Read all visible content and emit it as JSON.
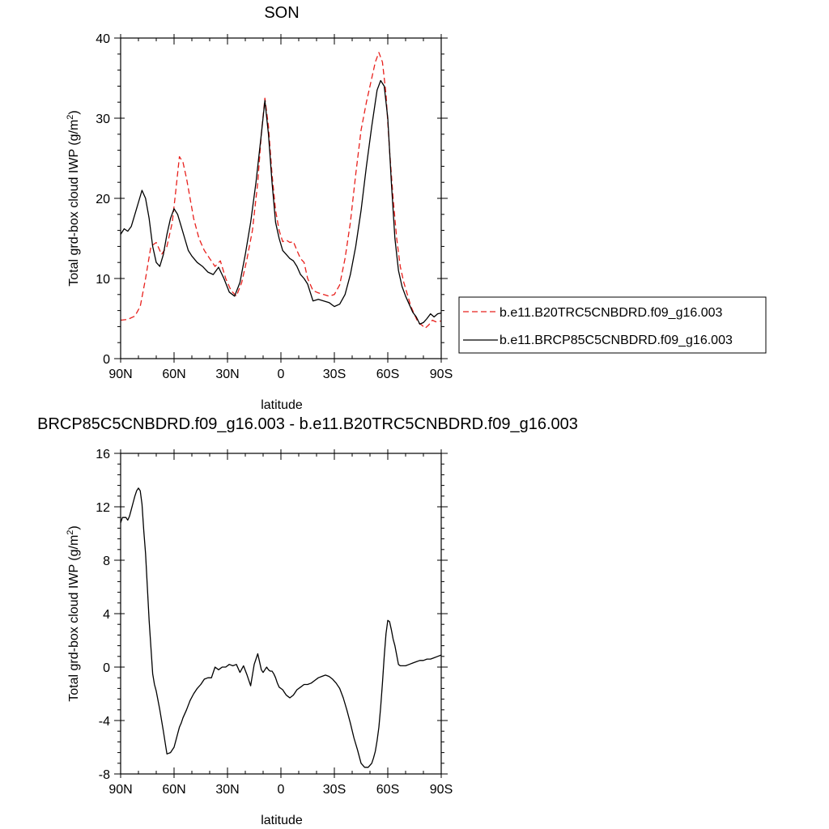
{
  "chart_data": [
    {
      "type": "line",
      "title": "SON",
      "xlabel": "latitude",
      "ylabel": "Total grd-box cloud IWP (g/m",
      "ylabel_sup": "2",
      "ylabel_close": ")",
      "xlim": [
        90,
        -90
      ],
      "ylim": [
        0,
        40
      ],
      "xticks": [
        90,
        60,
        30,
        0,
        -30,
        -60,
        -90
      ],
      "xtick_labels": [
        "90N",
        "60N",
        "30N",
        "0",
        "30S",
        "60S",
        "90S"
      ],
      "yticks": [
        0,
        10,
        20,
        30,
        40
      ],
      "ytick_labels": [
        "0",
        "10",
        "20",
        "30",
        "40"
      ],
      "legend_placement": "right",
      "series": [
        {
          "name": "b.e11.B20TRC5CNBDRD.f09_g16.003",
          "color": "#e8201c",
          "dash": "dashed",
          "x": [
            90,
            86,
            82,
            79,
            76,
            73,
            70,
            67,
            64,
            61,
            59,
            57,
            55,
            53,
            51,
            49,
            46,
            43,
            40,
            37,
            34,
            31,
            28,
            25,
            22,
            19,
            16,
            13,
            11,
            9,
            7,
            5,
            3,
            1,
            -1,
            -3,
            -5,
            -7,
            -9,
            -11,
            -13,
            -15,
            -18,
            -21,
            -24,
            -27,
            -30,
            -33,
            -36,
            -39,
            -42,
            -45,
            -48,
            -51,
            -53,
            -55,
            -57,
            -59,
            -61,
            -63,
            -65,
            -67,
            -69,
            -71,
            -73,
            -75,
            -77,
            -79,
            -81,
            -83,
            -85,
            -87,
            -90
          ],
          "y": [
            4.8,
            4.9,
            5.3,
            6.5,
            10,
            14,
            14.5,
            13,
            14,
            17,
            21,
            25.2,
            24.5,
            22.5,
            20,
            17.5,
            15,
            13.5,
            12.5,
            11.5,
            12.2,
            10,
            8.5,
            7.8,
            9.5,
            12.5,
            16,
            22,
            28,
            32.5,
            29,
            23,
            18.5,
            16,
            14.6,
            14.8,
            14.5,
            14.6,
            13.5,
            12.5,
            12,
            10,
            8.5,
            8.2,
            8,
            7.8,
            8,
            9.2,
            12.5,
            17,
            23,
            28.5,
            32,
            35,
            37,
            38.2,
            37,
            33,
            26,
            20,
            15,
            11.5,
            9.5,
            8,
            6.5,
            5.5,
            4.5,
            4.2,
            3.8,
            4.2,
            4.8,
            4.6,
            4.7
          ]
        },
        {
          "name": "b.e11.BRCP85C5CNBDRD.f09_g16.003",
          "color": "#000000",
          "dash": "solid",
          "x": [
            90,
            88,
            86,
            84,
            82,
            80,
            78,
            76,
            74,
            72,
            70,
            68,
            66,
            64,
            62,
            60,
            58,
            56,
            54,
            52,
            50,
            47,
            44,
            41,
            38,
            35,
            32,
            29,
            26,
            23,
            20,
            17,
            14,
            11,
            9,
            7,
            5,
            3,
            1,
            -1,
            -3,
            -5,
            -7,
            -9,
            -11,
            -13,
            -15,
            -18,
            -21,
            -24,
            -27,
            -30,
            -33,
            -36,
            -39,
            -42,
            -45,
            -48,
            -51,
            -54,
            -56,
            -58,
            -60,
            -62,
            -64,
            -66,
            -68,
            -70,
            -72,
            -74,
            -76,
            -78,
            -80,
            -82,
            -84,
            -86,
            -88,
            -90
          ],
          "y": [
            15.5,
            16.2,
            15.9,
            16.5,
            18,
            19.5,
            21,
            20,
            17.5,
            14,
            12,
            11.5,
            13,
            15.5,
            17.5,
            18.7,
            18,
            16.5,
            15,
            13.5,
            12.8,
            12,
            11.5,
            10.8,
            10.5,
            11.4,
            10,
            8.3,
            7.8,
            9.5,
            13,
            17,
            22,
            28,
            32.2,
            28,
            22,
            17,
            15,
            13.5,
            13,
            12.5,
            12.2,
            11.5,
            10.5,
            10,
            9.3,
            7.2,
            7.4,
            7.2,
            7,
            6.5,
            6.8,
            8,
            10.5,
            14,
            18.5,
            24,
            29,
            33.5,
            34.7,
            34,
            30,
            22,
            15,
            11,
            9,
            7.8,
            6.8,
            5.8,
            5.2,
            4.3,
            4.5,
            5,
            5.6,
            5.2,
            5.6,
            5.7
          ]
        }
      ]
    },
    {
      "type": "line",
      "title": "BRCP85C5CNBDRD.f09_g16.003 - b.e11.B20TRC5CNBDRD.f09_g16.003",
      "xlabel": "latitude",
      "ylabel": "Total grd-box cloud IWP (g/m",
      "ylabel_sup": "2",
      "ylabel_close": ")",
      "xlim": [
        90,
        -90
      ],
      "ylim": [
        -8,
        16
      ],
      "xticks": [
        90,
        60,
        30,
        0,
        -30,
        -60,
        -90
      ],
      "xtick_labels": [
        "90N",
        "60N",
        "30N",
        "0",
        "30S",
        "60S",
        "90S"
      ],
      "yticks": [
        -8,
        -4,
        0,
        4,
        8,
        12,
        16
      ],
      "ytick_labels": [
        "-8",
        "-4",
        "0",
        "4",
        "8",
        "12",
        "16"
      ],
      "series": [
        {
          "color": "#000000",
          "dash": "solid",
          "x": [
            90,
            89,
            88,
            87,
            86,
            85,
            84,
            83,
            82,
            81,
            80,
            79,
            78,
            77,
            76,
            75,
            74,
            73,
            72,
            71,
            70,
            68,
            66,
            64,
            62,
            60,
            59,
            58,
            57,
            56,
            55,
            53,
            51,
            49,
            47,
            45,
            43,
            41,
            39,
            37,
            35,
            33,
            31,
            29,
            27,
            25,
            23,
            21,
            19,
            17,
            15,
            13,
            11,
            10,
            9,
            8,
            7,
            6,
            5,
            4,
            3,
            2,
            1,
            0,
            -1,
            -2,
            -3,
            -4,
            -5,
            -7,
            -9,
            -11,
            -13,
            -15,
            -17,
            -19,
            -21,
            -23,
            -25,
            -27,
            -29,
            -31,
            -33,
            -35,
            -37,
            -39,
            -41,
            -43,
            -45,
            -47,
            -49,
            -51,
            -52,
            -53,
            -54,
            -55,
            -56,
            -57,
            -58,
            -59,
            -60,
            -61,
            -62,
            -63,
            -64,
            -65,
            -66,
            -67,
            -68,
            -70,
            -72,
            -74,
            -76,
            -78,
            -80,
            -82,
            -84,
            -86,
            -88,
            -90
          ],
          "y": [
            10.8,
            11.2,
            11.2,
            11.2,
            11,
            11.3,
            11.8,
            12.3,
            12.8,
            13.2,
            13.4,
            13.2,
            12.2,
            10.2,
            8.5,
            6,
            3.5,
            1.5,
            -0.5,
            -1.3,
            -1.8,
            -3.2,
            -4.8,
            -6.5,
            -6.4,
            -6,
            -5.5,
            -5,
            -4.5,
            -4.2,
            -3.8,
            -3.2,
            -2.5,
            -2,
            -1.6,
            -1.3,
            -0.9,
            -0.8,
            -0.8,
            0,
            -0.2,
            0,
            0,
            0.2,
            0.1,
            0.2,
            -0.4,
            0.1,
            -0.6,
            -1.4,
            0.2,
            1,
            -0.2,
            -0.4,
            -0.2,
            0,
            -0.2,
            -0.3,
            -0.3,
            -0.5,
            -0.8,
            -1.2,
            -1.5,
            -1.6,
            -1.7,
            -1.9,
            -2.1,
            -2.2,
            -2.3,
            -2.1,
            -1.7,
            -1.5,
            -1.3,
            -1.3,
            -1.2,
            -1,
            -0.8,
            -0.7,
            -0.6,
            -0.7,
            -0.9,
            -1.2,
            -1.6,
            -2.3,
            -3.2,
            -4.2,
            -5.3,
            -6.2,
            -7.2,
            -7.5,
            -7.5,
            -7.2,
            -6.8,
            -6.3,
            -5.5,
            -4.5,
            -3,
            -1.2,
            0.8,
            2.5,
            3.5,
            3.4,
            2.8,
            2.1,
            1.6,
            0.9,
            0.2,
            0.1,
            0.1,
            0.1,
            0.2,
            0.3,
            0.4,
            0.5,
            0.5,
            0.6,
            0.6,
            0.7,
            0.8,
            0.9
          ]
        }
      ]
    }
  ],
  "legend": {
    "items": [
      {
        "label": "b.e11.B20TRC5CNBDRD.f09_g16.003"
      },
      {
        "label": "b.e11.BRCP85C5CNBDRD.f09_g16.003"
      }
    ]
  }
}
